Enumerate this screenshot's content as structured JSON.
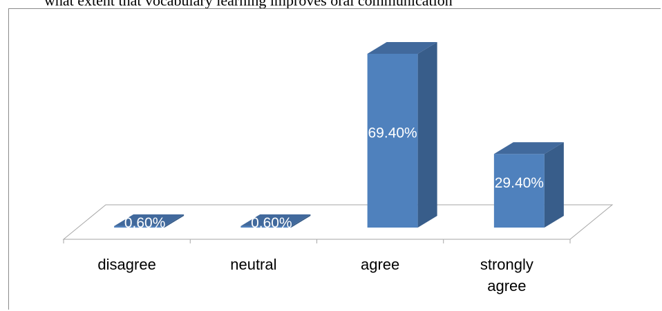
{
  "header": {
    "fragment": "what extent that vocabulary learning improves oral communication"
  },
  "chart_data": {
    "type": "bar",
    "title": "",
    "xlabel": "",
    "ylabel": "",
    "categories": [
      [
        "disagree"
      ],
      [
        "neutral"
      ],
      [
        "agree"
      ],
      [
        "strongly",
        "agree"
      ]
    ],
    "values": [
      0.6,
      0.6,
      69.4,
      29.4
    ],
    "value_labels": [
      "0.60%",
      "0.60%",
      "69.40%",
      "29.40%"
    ],
    "ylim": [
      0,
      80
    ],
    "grid": false,
    "legend": "none",
    "style": "3d-column",
    "colors": {
      "front": "#4f81bd",
      "side": "#385d8a",
      "top": "#41699c",
      "floor_stroke": "#a6a6a6"
    }
  }
}
